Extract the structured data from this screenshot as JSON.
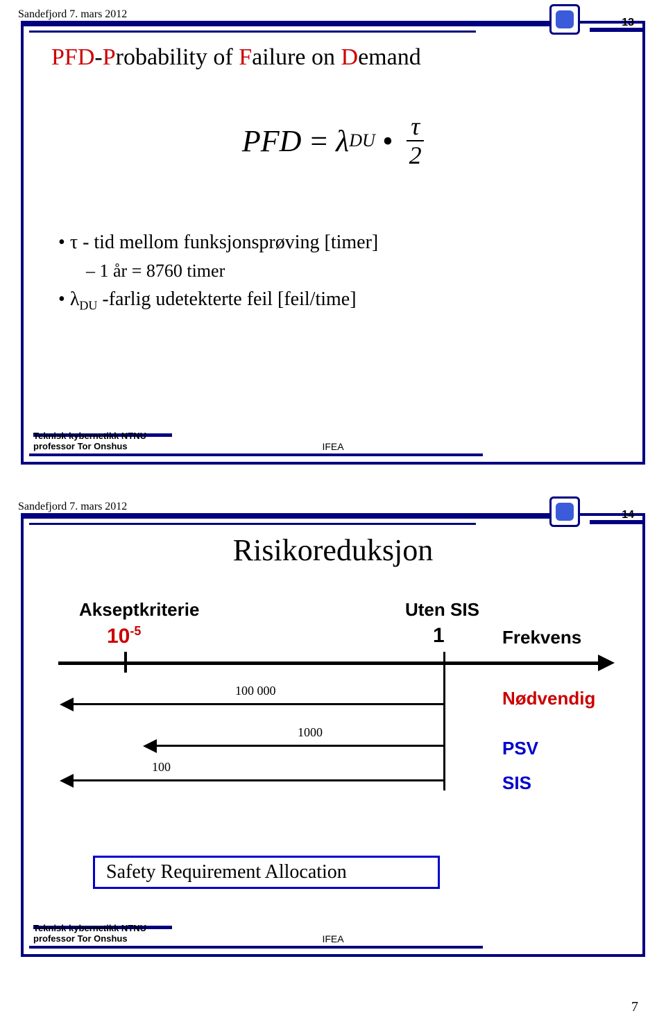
{
  "meta": {
    "date_location": "Sandefjord 7. mars 2012",
    "footer_org": "Teknisk kybernetikk NTNU",
    "footer_author": "professor Tor Onshus",
    "footer_center": "IFEA",
    "page_bottom": "7"
  },
  "slide1": {
    "page_num": "13",
    "title_letters": {
      "p": "P",
      "f": "F",
      "d": "D"
    },
    "title_rest1": "-",
    "title_rest2": "robability of ",
    "title_rest3": "ailure on ",
    "title_rest4": "emand",
    "formula": {
      "lhs": "PFD",
      "eq": "=",
      "lambda": "λ",
      "sub": "DU",
      "dot": "•",
      "num": "τ",
      "den": "2"
    },
    "bullets": {
      "b1_pre": "τ - tid mellom funksjonsprøving [timer]",
      "b1_sub": "1 år = 8760 timer",
      "b2_pre": "λ",
      "b2_sub_char": "DU",
      "b2_post": " -farlig udetekterte feil [feil/time]"
    }
  },
  "slide2": {
    "page_num": "14",
    "title": "Risikoreduksjon",
    "labels": {
      "akseptkriterie": "Akseptkriterie",
      "ten5_base": "10",
      "ten5_exp": "-5",
      "uten_sis": "Uten SIS",
      "one": "1",
      "frekvens": "Frekvens",
      "nodvendig": "Nødvendig",
      "psv": "PSV",
      "sis": "SIS",
      "n100000": "100 000",
      "n1000": "1000",
      "n100": "100",
      "sra": "Safety Requirement Allocation"
    },
    "colors": {
      "red": "#cc0000",
      "blue": "#0000cc",
      "frame": "#000080",
      "black": "#000000"
    }
  }
}
